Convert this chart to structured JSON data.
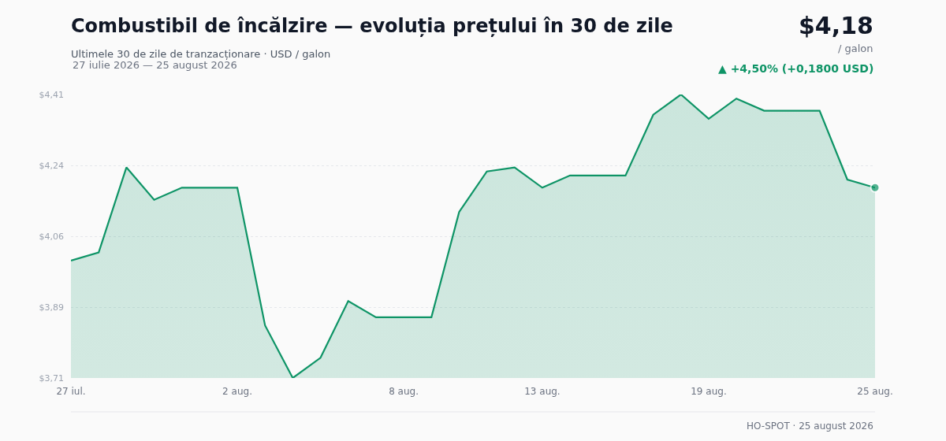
{
  "chart_data": {
    "type": "area",
    "title": "Combustibil de încălzire — evoluția prețului în 30 de zile",
    "subtitle": "Ultimele 30 de zile de tranzacționare · USD / galon",
    "annotations": [
      "27 iulie 2026 — 25 august 2026",
      "$4,18",
      "/ galon",
      "▲ +4,50% (+0,1800 USD)",
      "HO-SPOT · 25 august 2026"
    ],
    "x": [
      "2026-07-27",
      "2026-07-28",
      "2026-07-29",
      "2026-07-30",
      "2026-07-31",
      "2026-08-01",
      "2026-08-02",
      "2026-08-03",
      "2026-08-04",
      "2026-08-05",
      "2026-08-06",
      "2026-08-07",
      "2026-08-08",
      "2026-08-09",
      "2026-08-10",
      "2026-08-11",
      "2026-08-12",
      "2026-08-13",
      "2026-08-14",
      "2026-08-15",
      "2026-08-16",
      "2026-08-17",
      "2026-08-18",
      "2026-08-19",
      "2026-08-20",
      "2026-08-21",
      "2026-08-22",
      "2026-08-23",
      "2026-08-24",
      "2026-08-25"
    ],
    "series": [
      {
        "color": "#0e9466",
        "values": [
          4.0,
          4.02,
          4.23,
          4.15,
          4.18,
          4.18,
          4.18,
          3.84,
          3.71,
          3.76,
          3.9,
          3.86,
          3.86,
          3.86,
          4.12,
          4.22,
          4.23,
          4.18,
          4.21,
          4.21,
          4.21,
          4.36,
          4.41,
          4.35,
          4.4,
          4.37,
          4.37,
          4.37,
          4.2,
          4.18
        ]
      }
    ],
    "xlim": [
      "2026-07-27",
      "2026-08-25"
    ],
    "xticks": [
      {
        "value": "2026-07-27",
        "label": "27 iul."
      },
      {
        "value": "2026-08-02",
        "label": "2 aug."
      },
      {
        "value": "2026-08-08",
        "label": "8 aug."
      },
      {
        "value": "2026-08-13",
        "label": "13 aug."
      },
      {
        "value": "2026-08-19",
        "label": "19 aug."
      },
      {
        "value": "2026-08-25",
        "label": "25 aug."
      }
    ],
    "ylim": [
      3.71,
      4.41
    ],
    "yticks": [
      {
        "value": 3.71,
        "label": "$3,71"
      },
      {
        "value": 3.885,
        "label": "$3,89"
      },
      {
        "value": 4.06,
        "label": "$4,06"
      },
      {
        "value": 4.235,
        "label": "$4,24"
      },
      {
        "value": 4.41,
        "label": "$4,41"
      }
    ],
    "grid": "y"
  }
}
